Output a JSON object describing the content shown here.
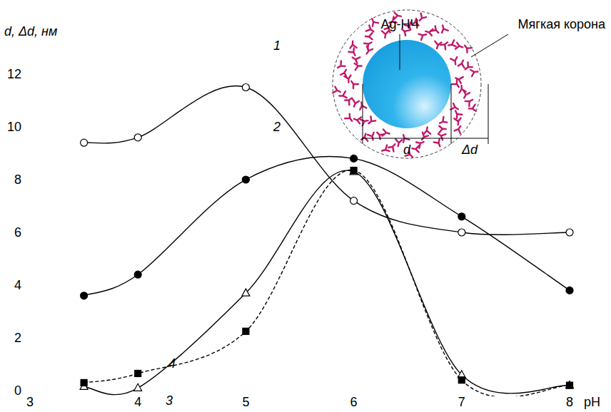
{
  "chart_data": {
    "type": "line",
    "y_label": "d, Δd, нм",
    "x_label": "pH",
    "x": [
      3.5,
      4,
      5,
      6,
      7,
      8
    ],
    "xlim": [
      3,
      8
    ],
    "xticks": [
      3,
      4,
      5,
      6,
      7,
      8
    ],
    "ylim": [
      0,
      12
    ],
    "yticks": [
      0,
      2,
      4,
      6,
      8,
      10,
      12
    ],
    "grid": false,
    "series": [
      {
        "name": "1",
        "color": "#000000",
        "marker": "open-circle",
        "line_style": "solid",
        "values": [
          9.4,
          9.6,
          11.5,
          7.2,
          6.0,
          6.0
        ]
      },
      {
        "name": "2",
        "color": "#000000",
        "marker": "filled-circle",
        "line_style": "solid",
        "values": [
          3.6,
          4.4,
          8.0,
          8.8,
          6.6,
          3.8
        ]
      },
      {
        "name": "3",
        "color": "#000000",
        "marker": "open-triangle",
        "line_style": "solid",
        "values": [
          0.15,
          0.1,
          3.7,
          8.3,
          0.6,
          0.2
        ]
      },
      {
        "name": "4",
        "color": "#000000",
        "marker": "filled-square",
        "line_style": "dashed",
        "values": [
          0.3,
          0.65,
          2.25,
          8.35,
          0.4,
          0.2
        ]
      }
    ],
    "annotations": [
      "Ag-НЧ",
      "Мягкая корона",
      "d",
      "Δd"
    ]
  }
}
